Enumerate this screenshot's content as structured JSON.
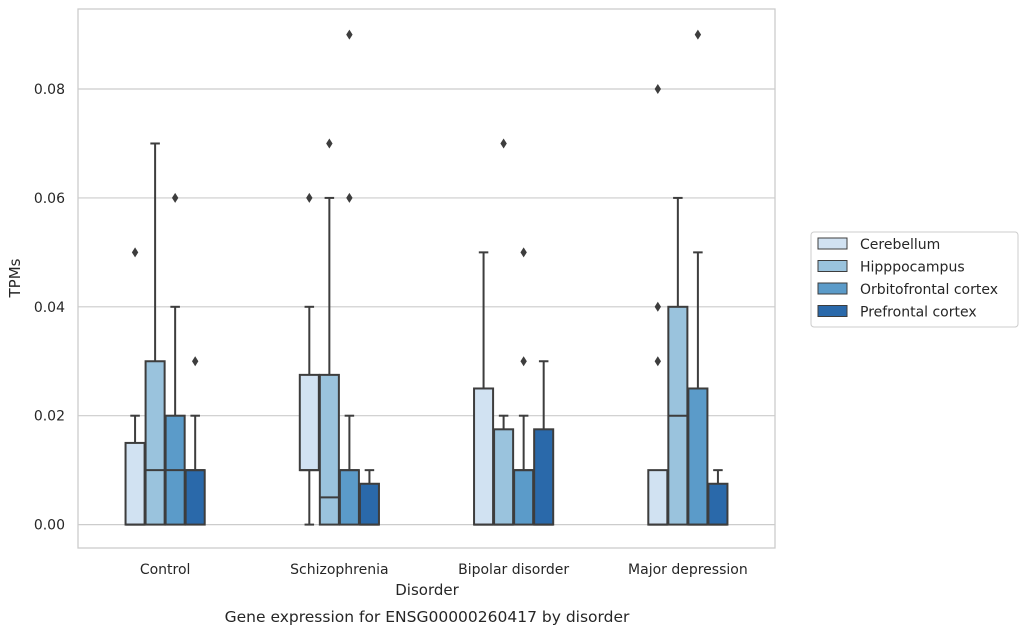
{
  "chart_data": {
    "type": "box",
    "caption": "Gene expression for ENSG00000260417 by disorder",
    "xlabel": "Disorder",
    "ylabel": "TPMs",
    "ylim": [
      -0.0043,
      0.0947
    ],
    "yticks": [
      0.0,
      0.02,
      0.04,
      0.06,
      0.08
    ],
    "ytick_labels": [
      "0.00",
      "0.02",
      "0.04",
      "0.06",
      "0.08"
    ],
    "grid": "horizontal",
    "legend_position": "right",
    "categories": [
      "Control",
      "Schizophrenia",
      "Bipolar disorder",
      "Major depression"
    ],
    "series": [
      {
        "name": "Cerebellum",
        "color": "#d1e2f2",
        "boxes": [
          {
            "whisker_low": 0.0,
            "q1": 0.0,
            "median": 0.0,
            "q3": 0.015,
            "whisker_high": 0.02,
            "outliers": [
              0.05
            ]
          },
          {
            "whisker_low": 0.0,
            "q1": 0.01,
            "median": 0.01,
            "q3": 0.0275,
            "whisker_high": 0.04,
            "outliers": [
              0.06
            ]
          },
          {
            "whisker_low": 0.0,
            "q1": 0.0,
            "median": 0.0,
            "q3": 0.025,
            "whisker_high": 0.05,
            "outliers": []
          },
          {
            "whisker_low": 0.0,
            "q1": 0.0,
            "median": 0.0,
            "q3": 0.01,
            "whisker_high": 0.01,
            "outliers": [
              0.03,
              0.04,
              0.08
            ]
          }
        ]
      },
      {
        "name": "Hipppocampus",
        "color": "#9ac3dd",
        "boxes": [
          {
            "whisker_low": 0.0,
            "q1": 0.0,
            "median": 0.01,
            "q3": 0.03,
            "whisker_high": 0.07,
            "outliers": []
          },
          {
            "whisker_low": 0.0,
            "q1": 0.0,
            "median": 0.005,
            "q3": 0.0275,
            "whisker_high": 0.06,
            "outliers": [
              0.07
            ]
          },
          {
            "whisker_low": 0.0,
            "q1": 0.0,
            "median": 0.0,
            "q3": 0.0175,
            "whisker_high": 0.02,
            "outliers": [
              0.07
            ]
          },
          {
            "whisker_low": 0.0,
            "q1": 0.0,
            "median": 0.02,
            "q3": 0.04,
            "whisker_high": 0.06,
            "outliers": []
          }
        ]
      },
      {
        "name": "Orbitofrontal cortex",
        "color": "#5b9bc9",
        "boxes": [
          {
            "whisker_low": 0.0,
            "q1": 0.0,
            "median": 0.01,
            "q3": 0.02,
            "whisker_high": 0.04,
            "outliers": [
              0.06
            ]
          },
          {
            "whisker_low": 0.0,
            "q1": 0.0,
            "median": 0.01,
            "q3": 0.01,
            "whisker_high": 0.02,
            "outliers": [
              0.06,
              0.09
            ]
          },
          {
            "whisker_low": 0.0,
            "q1": 0.0,
            "median": 0.01,
            "q3": 0.01,
            "whisker_high": 0.02,
            "outliers": [
              0.03,
              0.05
            ]
          },
          {
            "whisker_low": 0.0,
            "q1": 0.0,
            "median": 0.0,
            "q3": 0.025,
            "whisker_high": 0.05,
            "outliers": [
              0.09
            ]
          }
        ]
      },
      {
        "name": "Prefrontal cortex",
        "color": "#2a69aa",
        "boxes": [
          {
            "whisker_low": 0.0,
            "q1": 0.0,
            "median": 0.01,
            "q3": 0.01,
            "whisker_high": 0.02,
            "outliers": [
              0.03
            ]
          },
          {
            "whisker_low": 0.0,
            "q1": 0.0,
            "median": 0.0,
            "q3": 0.0075,
            "whisker_high": 0.01,
            "outliers": []
          },
          {
            "whisker_low": 0.0,
            "q1": 0.0,
            "median": 0.0,
            "q3": 0.0175,
            "whisker_high": 0.03,
            "outliers": []
          },
          {
            "whisker_low": 0.0,
            "q1": 0.0,
            "median": 0.0,
            "q3": 0.0075,
            "whisker_high": 0.01,
            "outliers": []
          }
        ]
      }
    ]
  }
}
